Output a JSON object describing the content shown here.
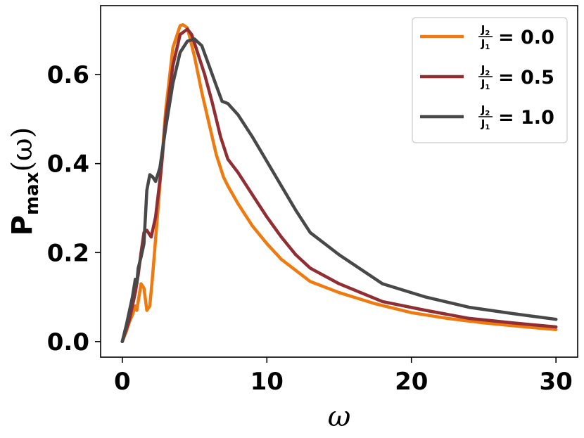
{
  "chart_data": {
    "type": "line",
    "xlabel": "ω",
    "ylabel": {
      "base": "P",
      "subscript": "max",
      "arg": "(ω)"
    },
    "xlim": [
      -1.5,
      31.5
    ],
    "ylim": [
      -0.035,
      0.755
    ],
    "xticks": [
      0,
      10,
      20,
      30
    ],
    "xtick_labels": [
      "0",
      "10",
      "20",
      "30"
    ],
    "yticks": [
      0.0,
      0.2,
      0.4,
      0.6
    ],
    "ytick_labels": [
      "0.0",
      "0.2",
      "0.4",
      "0.6"
    ],
    "grid": false,
    "legend_position": "top-right",
    "series": [
      {
        "name": "J2/J1 = 0.0",
        "legend": {
          "num": "J",
          "num_sub": "2",
          "den": "J",
          "den_sub": "1",
          "rest": "= 0.0"
        },
        "color": "#ef7b10",
        "x": [
          0,
          0.3,
          0.5,
          0.7,
          0.9,
          1.0,
          1.1,
          1.3,
          1.5,
          1.7,
          1.9,
          2.1,
          2.5,
          3.0,
          3.5,
          4.0,
          4.2,
          4.5,
          5.0,
          5.5,
          6.0,
          6.5,
          7.0,
          7.3,
          8.0,
          9.0,
          10.0,
          11.0,
          12.0,
          13.0,
          15.0,
          17.5,
          20.0,
          22.5,
          25.0,
          27.5,
          30.0
        ],
        "y": [
          0.0,
          0.025,
          0.045,
          0.06,
          0.08,
          0.07,
          0.09,
          0.13,
          0.12,
          0.07,
          0.08,
          0.15,
          0.31,
          0.52,
          0.66,
          0.71,
          0.712,
          0.705,
          0.64,
          0.56,
          0.49,
          0.42,
          0.37,
          0.35,
          0.31,
          0.26,
          0.22,
          0.185,
          0.16,
          0.135,
          0.11,
          0.085,
          0.065,
          0.052,
          0.042,
          0.034,
          0.027
        ]
      },
      {
        "name": "J2/J1 = 0.5",
        "legend": {
          "num": "J",
          "num_sub": "2",
          "den": "J",
          "den_sub": "1",
          "rest": "= 0.5"
        },
        "color": "#902e33",
        "x": [
          0,
          0.3,
          0.5,
          0.7,
          0.9,
          1.1,
          1.3,
          1.5,
          1.7,
          2.0,
          2.3,
          2.7,
          3.0,
          3.5,
          4.0,
          4.5,
          4.8,
          5.2,
          5.7,
          6.2,
          6.8,
          7.3,
          8.0,
          9.0,
          10.0,
          11.0,
          12.0,
          13.0,
          15.0,
          18.0,
          21.0,
          24.0,
          27.0,
          30.0
        ],
        "y": [
          0.0,
          0.03,
          0.05,
          0.08,
          0.11,
          0.15,
          0.2,
          0.245,
          0.25,
          0.235,
          0.28,
          0.39,
          0.5,
          0.62,
          0.69,
          0.702,
          0.69,
          0.65,
          0.6,
          0.54,
          0.46,
          0.41,
          0.38,
          0.33,
          0.28,
          0.235,
          0.195,
          0.165,
          0.13,
          0.09,
          0.07,
          0.052,
          0.042,
          0.033
        ]
      },
      {
        "name": "J2/J1 = 1.0",
        "legend": {
          "num": "J",
          "num_sub": "2",
          "den": "J",
          "den_sub": "1",
          "rest": "= 1.0"
        },
        "color": "#484848",
        "x": [
          0,
          0.3,
          0.5,
          0.7,
          0.9,
          1.0,
          1.1,
          1.3,
          1.5,
          1.7,
          1.9,
          2.1,
          2.3,
          2.6,
          3.0,
          3.5,
          4.0,
          4.5,
          5.0,
          5.5,
          6.0,
          6.5,
          6.9,
          7.3,
          8.0,
          9.0,
          10.0,
          11.0,
          12.0,
          13.0,
          15.0,
          18.0,
          21.0,
          24.0,
          27.0,
          30.0
        ],
        "y": [
          0.0,
          0.04,
          0.07,
          0.1,
          0.14,
          0.13,
          0.165,
          0.19,
          0.22,
          0.34,
          0.375,
          0.37,
          0.36,
          0.39,
          0.48,
          0.58,
          0.65,
          0.675,
          0.68,
          0.665,
          0.62,
          0.575,
          0.54,
          0.535,
          0.51,
          0.46,
          0.405,
          0.35,
          0.295,
          0.245,
          0.195,
          0.13,
          0.1,
          0.077,
          0.063,
          0.05
        ]
      }
    ]
  }
}
